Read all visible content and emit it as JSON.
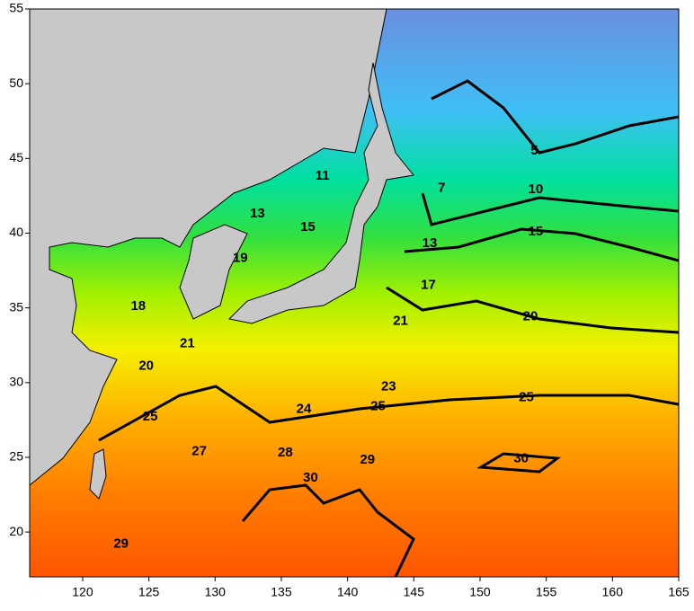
{
  "chart_data": {
    "type": "contour",
    "xlim": [
      116,
      165
    ],
    "ylim": [
      17,
      55
    ],
    "xticks": [
      120,
      125,
      130,
      135,
      140,
      145,
      150,
      155,
      160,
      165
    ],
    "yticks": [
      20,
      25,
      30,
      35,
      40,
      45,
      50,
      55
    ],
    "contour_labels": {
      "x": [
        154.1,
        147.1,
        154.2,
        138.1,
        133.2,
        137.0,
        154.2,
        146.2,
        131.9,
        124.2,
        146.1,
        153.8,
        144.0,
        127.9,
        124.8,
        143.1,
        142.3,
        153.5,
        136.7,
        125.1,
        128.8,
        135.3,
        141.5,
        153.1,
        137.2,
        122.9
      ],
      "y": [
        45.5,
        43.0,
        42.9,
        43.8,
        41.3,
        40.4,
        40.1,
        39.3,
        38.3,
        35.1,
        36.5,
        34.4,
        34.1,
        32.6,
        31.1,
        29.7,
        28.4,
        29.0,
        28.2,
        27.7,
        25.4,
        25.3,
        24.8,
        24.9,
        23.6,
        19.2
      ],
      "values": [
        5,
        7,
        10,
        11,
        13,
        15,
        15,
        13,
        19,
        18,
        17,
        20,
        21,
        21,
        20,
        23,
        25,
        25,
        24,
        25,
        27,
        28,
        29,
        30,
        30,
        29
      ]
    }
  }
}
